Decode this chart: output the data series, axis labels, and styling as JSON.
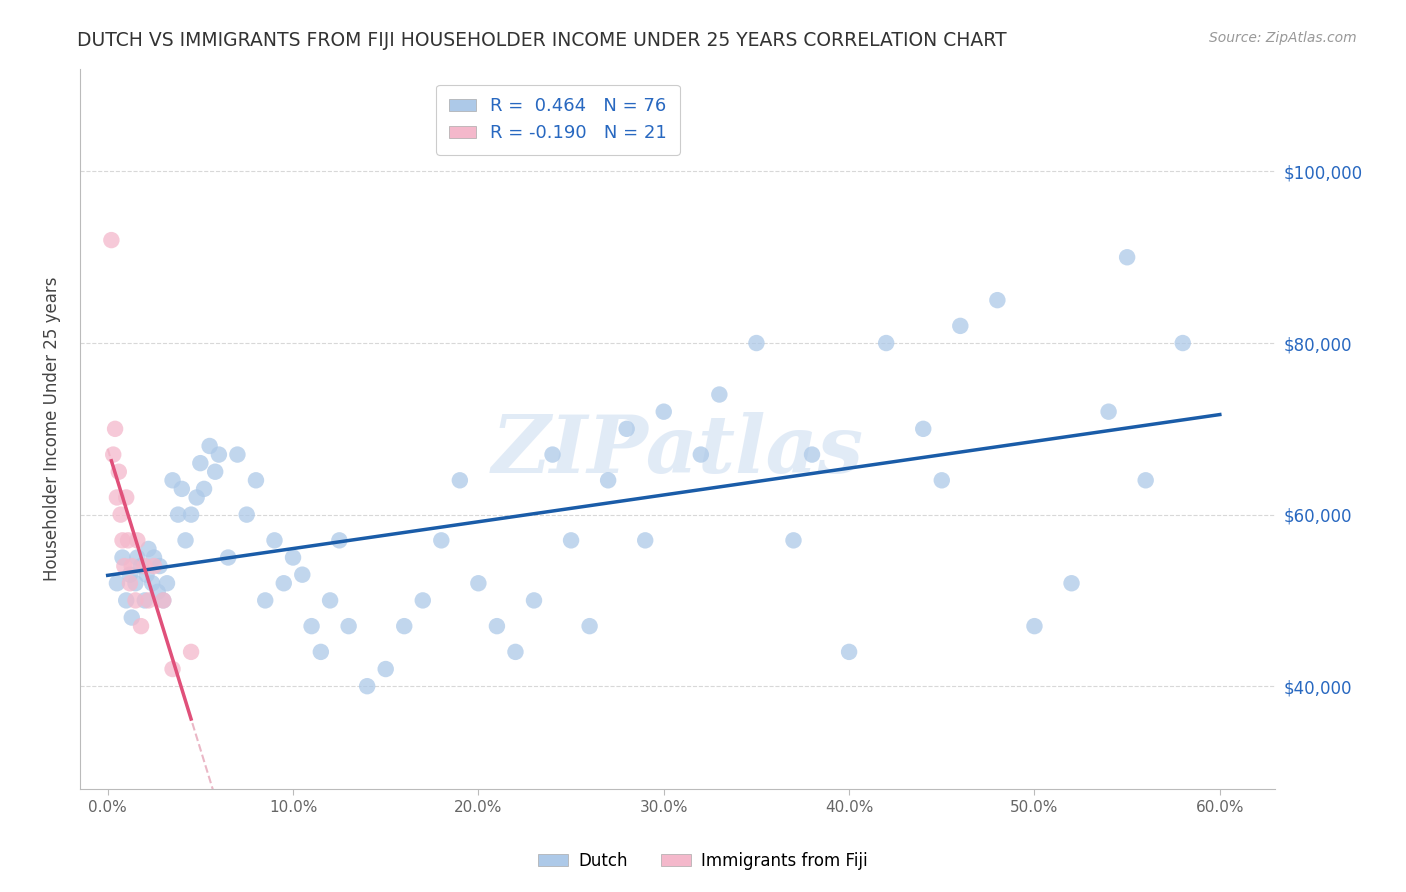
{
  "title": "DUTCH VS IMMIGRANTS FROM FIJI HOUSEHOLDER INCOME UNDER 25 YEARS CORRELATION CHART",
  "source": "Source: ZipAtlas.com",
  "ylabel": "Householder Income Under 25 years",
  "dutch_color": "#adc9e8",
  "fiji_color": "#f4b8cb",
  "dutch_line_color": "#1a5ca8",
  "fiji_line_color": "#e0507a",
  "fiji_dash_color": "#e8b0c0",
  "watermark": "ZIPatlas",
  "background_color": "#ffffff",
  "grid_color": "#dddddd",
  "dutch_x": [
    0.5,
    0.8,
    1.0,
    1.2,
    1.3,
    1.5,
    1.6,
    1.8,
    2.0,
    2.1,
    2.2,
    2.4,
    2.5,
    2.7,
    2.8,
    3.0,
    3.2,
    3.5,
    3.8,
    4.0,
    4.2,
    4.5,
    4.8,
    5.0,
    5.2,
    5.5,
    5.8,
    6.0,
    6.5,
    7.0,
    7.5,
    8.0,
    8.5,
    9.0,
    9.5,
    10.0,
    10.5,
    11.0,
    11.5,
    12.0,
    12.5,
    13.0,
    14.0,
    15.0,
    16.0,
    17.0,
    18.0,
    19.0,
    20.0,
    21.0,
    22.0,
    23.0,
    24.0,
    25.0,
    26.0,
    27.0,
    28.0,
    29.0,
    30.0,
    32.0,
    33.0,
    35.0,
    37.0,
    38.0,
    40.0,
    42.0,
    44.0,
    46.0,
    48.0,
    50.0,
    52.0,
    54.0,
    56.0,
    58.0,
    45.0,
    55.0
  ],
  "dutch_y": [
    52000,
    55000,
    50000,
    53000,
    48000,
    52000,
    55000,
    54000,
    50000,
    53000,
    56000,
    52000,
    55000,
    51000,
    54000,
    50000,
    52000,
    64000,
    60000,
    63000,
    57000,
    60000,
    62000,
    66000,
    63000,
    68000,
    65000,
    67000,
    55000,
    67000,
    60000,
    64000,
    50000,
    57000,
    52000,
    55000,
    53000,
    47000,
    44000,
    50000,
    57000,
    47000,
    40000,
    42000,
    47000,
    50000,
    57000,
    64000,
    52000,
    47000,
    44000,
    50000,
    67000,
    57000,
    47000,
    64000,
    70000,
    57000,
    72000,
    67000,
    74000,
    80000,
    57000,
    67000,
    44000,
    80000,
    70000,
    82000,
    85000,
    47000,
    52000,
    72000,
    64000,
    80000,
    64000,
    90000
  ],
  "fiji_x": [
    0.2,
    0.3,
    0.4,
    0.5,
    0.6,
    0.7,
    0.8,
    0.9,
    1.0,
    1.1,
    1.2,
    1.3,
    1.5,
    1.6,
    1.8,
    2.0,
    2.2,
    2.5,
    3.0,
    3.5,
    4.5
  ],
  "fiji_y": [
    92000,
    67000,
    70000,
    62000,
    65000,
    60000,
    57000,
    54000,
    62000,
    57000,
    52000,
    54000,
    50000,
    57000,
    47000,
    54000,
    50000,
    54000,
    50000,
    42000,
    44000
  ],
  "xlim": [
    -1.5,
    63.0
  ],
  "ylim": [
    28000,
    112000
  ],
  "ytick_vals": [
    40000,
    60000,
    80000,
    100000
  ],
  "ytick_labels": [
    "$40,000",
    "$60,000",
    "$80,000",
    "$100,000"
  ],
  "xtick_vals": [
    0,
    10,
    20,
    30,
    40,
    50,
    60
  ],
  "xtick_labels": [
    "0.0%",
    "10.0%",
    "20.0%",
    "30.0%",
    "40.0%",
    "50.0%",
    "60.0%"
  ]
}
